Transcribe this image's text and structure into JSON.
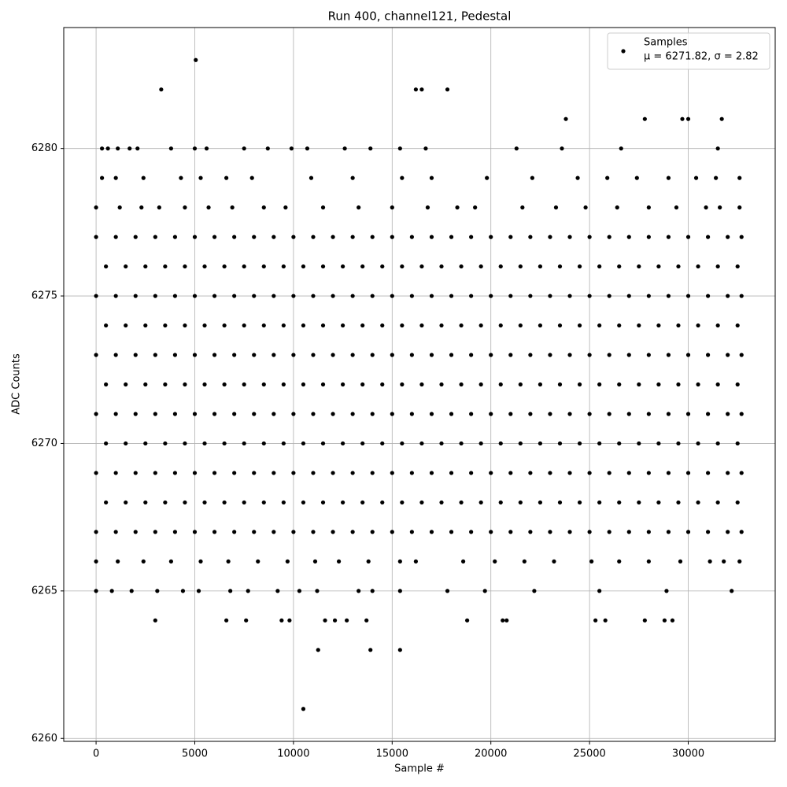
{
  "chart_data": {
    "type": "scatter",
    "title": "Run 400, channel121, Pedestal",
    "x_label": "Sample #",
    "y_label": "ADC Counts",
    "xlim": [
      -1638,
      34405
    ],
    "ylim": [
      6259.9,
      6284.1
    ],
    "xticks": [
      0,
      5000,
      10000,
      15000,
      20000,
      25000,
      30000
    ],
    "yticks": [
      6260,
      6265,
      6270,
      6275,
      6280
    ],
    "grid": true,
    "legend": "upper right",
    "series": [
      {
        "name": "Samples",
        "stats": "μ = 6271.82, σ = 2.82",
        "color": "#000000",
        "x": [
          3300,
          5050,
          16200,
          16500,
          17800,
          23800,
          27800,
          29700,
          30000,
          31700,
          11250,
          13900,
          15400,
          10500,
          3000,
          6600,
          7600,
          9400,
          9800,
          11600,
          12100,
          12700,
          13700,
          18800,
          20600,
          20800,
          25300,
          25800,
          27800,
          28800,
          29200,
          300,
          600,
          1100,
          1700,
          2100,
          3800,
          5000,
          5600,
          7500,
          8700,
          9900,
          10700,
          12600,
          13900,
          15400,
          16700,
          21300,
          23600,
          26600,
          31500,
          300,
          1000,
          2400,
          4300,
          5300,
          6600,
          7900,
          10900,
          13000,
          15500,
          17000,
          19800,
          22100,
          24400,
          25900,
          27400,
          29000,
          30400,
          31400,
          32600,
          0,
          1200,
          2300,
          3200,
          4500,
          5700,
          6900,
          8500,
          9600,
          11500,
          13300,
          15000,
          16800,
          18300,
          19200,
          21600,
          23300,
          24800,
          26400,
          28000,
          29400,
          30900,
          31600,
          32600,
          0,
          1100,
          2400,
          3800,
          5300,
          6700,
          8200,
          9700,
          11100,
          12300,
          13800,
          15400,
          16200,
          18600,
          20200,
          21700,
          23200,
          25100,
          26500,
          28000,
          29600,
          31100,
          31800,
          32600,
          0,
          800,
          1800,
          3100,
          4400,
          5200,
          6800,
          7700,
          9200,
          10300,
          11200,
          13300,
          14000,
          15400,
          17800,
          19700,
          22200,
          25500,
          28900,
          32200,
          0,
          1000,
          2000,
          3000,
          4000,
          5000,
          6000,
          7000,
          8000,
          9000,
          10000,
          11000,
          12000,
          13000,
          14000,
          15000,
          16000,
          17000,
          18000,
          19000,
          20000,
          21000,
          22000,
          23000,
          24000,
          25000,
          26000,
          27000,
          28000,
          29000,
          30000,
          31000,
          32000,
          32700,
          500,
          1500,
          2500,
          3500,
          4500,
          5500,
          6500,
          7500,
          8500,
          9500,
          10500,
          11500,
          12500,
          13500,
          14500,
          15500,
          16500,
          17500,
          18500,
          19500,
          20500,
          21500,
          22500,
          23500,
          24500,
          25500,
          26500,
          27500,
          28500,
          29500,
          30500,
          31500,
          32500,
          0,
          1000,
          2000,
          3000,
          4000,
          5000,
          6000,
          7000,
          8000,
          9000,
          10000,
          11000,
          12000,
          13000,
          14000,
          15000,
          16000,
          17000,
          18000,
          19000,
          20000,
          21000,
          22000,
          23000,
          24000,
          25000,
          26000,
          27000,
          28000,
          29000,
          30000,
          31000,
          32000,
          32700,
          500,
          1500,
          2500,
          3500,
          4500,
          5500,
          6500,
          7500,
          8500,
          9500,
          10500,
          11500,
          12500,
          13500,
          14500,
          15500,
          16500,
          17500,
          18500,
          19500,
          20500,
          21500,
          22500,
          23500,
          24500,
          25500,
          26500,
          27500,
          28500,
          29500,
          30500,
          31500,
          32500,
          0,
          1000,
          2000,
          3000,
          4000,
          5000,
          6000,
          7000,
          8000,
          9000,
          10000,
          11000,
          12000,
          13000,
          14000,
          15000,
          16000,
          17000,
          18000,
          19000,
          20000,
          21000,
          22000,
          23000,
          24000,
          25000,
          26000,
          27000,
          28000,
          29000,
          30000,
          31000,
          32000,
          32700,
          500,
          1500,
          2500,
          3500,
          4500,
          5500,
          6500,
          7500,
          8500,
          9500,
          10500,
          11500,
          12500,
          13500,
          14500,
          15500,
          16500,
          17500,
          18500,
          19500,
          20500,
          21500,
          22500,
          23500,
          24500,
          25500,
          26500,
          27500,
          28500,
          29500,
          30500,
          31500,
          32500,
          0,
          1000,
          2000,
          3000,
          4000,
          5000,
          6000,
          7000,
          8000,
          9000,
          10000,
          11000,
          12000,
          13000,
          14000,
          15000,
          16000,
          17000,
          18000,
          19000,
          20000,
          21000,
          22000,
          23000,
          24000,
          25000,
          26000,
          27000,
          28000,
          29000,
          30000,
          31000,
          32000,
          32700,
          500,
          1500,
          2500,
          3500,
          4500,
          5500,
          6500,
          7500,
          8500,
          9500,
          10500,
          11500,
          12500,
          13500,
          14500,
          15500,
          16500,
          17500,
          18500,
          19500,
          20500,
          21500,
          22500,
          23500,
          24500,
          25500,
          26500,
          27500,
          28500,
          29500,
          30500,
          31500,
          32500,
          0,
          1000,
          2000,
          3000,
          4000,
          5000,
          6000,
          7000,
          8000,
          9000,
          10000,
          11000,
          12000,
          13000,
          14000,
          15000,
          16000,
          17000,
          18000,
          19000,
          20000,
          21000,
          22000,
          23000,
          24000,
          25000,
          26000,
          27000,
          28000,
          29000,
          30000,
          31000,
          32000,
          32700,
          500,
          1500,
          2500,
          3500,
          4500,
          5500,
          6500,
          7500,
          8500,
          9500,
          10500,
          11500,
          12500,
          13500,
          14500,
          15500,
          16500,
          17500,
          18500,
          19500,
          20500,
          21500,
          22500,
          23500,
          24500,
          25500,
          26500,
          27500,
          28500,
          29500,
          30500,
          31500,
          32500,
          0,
          1000,
          2000,
          3000,
          4000,
          5000,
          6000,
          7000,
          8000,
          9000,
          10000,
          11000,
          12000,
          13000,
          14000,
          15000,
          16000,
          17000,
          18000,
          19000,
          20000,
          21000,
          22000,
          23000,
          24000,
          25000,
          26000,
          27000,
          28000,
          29000,
          30000,
          31000,
          32000,
          32700
        ],
        "values": [
          6282,
          6283,
          6282,
          6282,
          6282,
          6281,
          6281,
          6281,
          6281,
          6281,
          6263,
          6263,
          6263,
          6261,
          6264,
          6264,
          6264,
          6264,
          6264,
          6264,
          6264,
          6264,
          6264,
          6264,
          6264,
          6264,
          6264,
          6264,
          6264,
          6264,
          6264,
          6280,
          6280,
          6280,
          6280,
          6280,
          6280,
          6280,
          6280,
          6280,
          6280,
          6280,
          6280,
          6280,
          6280,
          6280,
          6280,
          6280,
          6280,
          6280,
          6280,
          6279,
          6279,
          6279,
          6279,
          6279,
          6279,
          6279,
          6279,
          6279,
          6279,
          6279,
          6279,
          6279,
          6279,
          6279,
          6279,
          6279,
          6279,
          6279,
          6279,
          6278,
          6278,
          6278,
          6278,
          6278,
          6278,
          6278,
          6278,
          6278,
          6278,
          6278,
          6278,
          6278,
          6278,
          6278,
          6278,
          6278,
          6278,
          6278,
          6278,
          6278,
          6278,
          6278,
          6278,
          6266,
          6266,
          6266,
          6266,
          6266,
          6266,
          6266,
          6266,
          6266,
          6266,
          6266,
          6266,
          6266,
          6266,
          6266,
          6266,
          6266,
          6266,
          6266,
          6266,
          6266,
          6266,
          6266,
          6266,
          6265,
          6265,
          6265,
          6265,
          6265,
          6265,
          6265,
          6265,
          6265,
          6265,
          6265,
          6265,
          6265,
          6265,
          6265,
          6265,
          6265,
          6265,
          6265,
          6265,
          6267,
          6267,
          6267,
          6267,
          6267,
          6267,
          6267,
          6267,
          6267,
          6267,
          6267,
          6267,
          6267,
          6267,
          6267,
          6267,
          6267,
          6267,
          6267,
          6267,
          6267,
          6267,
          6267,
          6267,
          6267,
          6267,
          6267,
          6267,
          6267,
          6267,
          6267,
          6267,
          6267,
          6267,
          6268,
          6268,
          6268,
          6268,
          6268,
          6268,
          6268,
          6268,
          6268,
          6268,
          6268,
          6268,
          6268,
          6268,
          6268,
          6268,
          6268,
          6268,
          6268,
          6268,
          6268,
          6268,
          6268,
          6268,
          6268,
          6268,
          6268,
          6268,
          6268,
          6268,
          6268,
          6268,
          6268,
          6269,
          6269,
          6269,
          6269,
          6269,
          6269,
          6269,
          6269,
          6269,
          6269,
          6269,
          6269,
          6269,
          6269,
          6269,
          6269,
          6269,
          6269,
          6269,
          6269,
          6269,
          6269,
          6269,
          6269,
          6269,
          6269,
          6269,
          6269,
          6269,
          6269,
          6269,
          6269,
          6269,
          6269,
          6270,
          6270,
          6270,
          6270,
          6270,
          6270,
          6270,
          6270,
          6270,
          6270,
          6270,
          6270,
          6270,
          6270,
          6270,
          6270,
          6270,
          6270,
          6270,
          6270,
          6270,
          6270,
          6270,
          6270,
          6270,
          6270,
          6270,
          6270,
          6270,
          6270,
          6270,
          6270,
          6270,
          6271,
          6271,
          6271,
          6271,
          6271,
          6271,
          6271,
          6271,
          6271,
          6271,
          6271,
          6271,
          6271,
          6271,
          6271,
          6271,
          6271,
          6271,
          6271,
          6271,
          6271,
          6271,
          6271,
          6271,
          6271,
          6271,
          6271,
          6271,
          6271,
          6271,
          6271,
          6271,
          6271,
          6271,
          6272,
          6272,
          6272,
          6272,
          6272,
          6272,
          6272,
          6272,
          6272,
          6272,
          6272,
          6272,
          6272,
          6272,
          6272,
          6272,
          6272,
          6272,
          6272,
          6272,
          6272,
          6272,
          6272,
          6272,
          6272,
          6272,
          6272,
          6272,
          6272,
          6272,
          6272,
          6272,
          6272,
          6273,
          6273,
          6273,
          6273,
          6273,
          6273,
          6273,
          6273,
          6273,
          6273,
          6273,
          6273,
          6273,
          6273,
          6273,
          6273,
          6273,
          6273,
          6273,
          6273,
          6273,
          6273,
          6273,
          6273,
          6273,
          6273,
          6273,
          6273,
          6273,
          6273,
          6273,
          6273,
          6273,
          6273,
          6274,
          6274,
          6274,
          6274,
          6274,
          6274,
          6274,
          6274,
          6274,
          6274,
          6274,
          6274,
          6274,
          6274,
          6274,
          6274,
          6274,
          6274,
          6274,
          6274,
          6274,
          6274,
          6274,
          6274,
          6274,
          6274,
          6274,
          6274,
          6274,
          6274,
          6274,
          6274,
          6274,
          6275,
          6275,
          6275,
          6275,
          6275,
          6275,
          6275,
          6275,
          6275,
          6275,
          6275,
          6275,
          6275,
          6275,
          6275,
          6275,
          6275,
          6275,
          6275,
          6275,
          6275,
          6275,
          6275,
          6275,
          6275,
          6275,
          6275,
          6275,
          6275,
          6275,
          6275,
          6275,
          6275,
          6275,
          6276,
          6276,
          6276,
          6276,
          6276,
          6276,
          6276,
          6276,
          6276,
          6276,
          6276,
          6276,
          6276,
          6276,
          6276,
          6276,
          6276,
          6276,
          6276,
          6276,
          6276,
          6276,
          6276,
          6276,
          6276,
          6276,
          6276,
          6276,
          6276,
          6276,
          6276,
          6276,
          6276,
          6277,
          6277,
          6277,
          6277,
          6277,
          6277,
          6277,
          6277,
          6277,
          6277,
          6277,
          6277,
          6277,
          6277,
          6277,
          6277,
          6277,
          6277,
          6277,
          6277,
          6277,
          6277,
          6277,
          6277,
          6277,
          6277,
          6277,
          6277,
          6277,
          6277,
          6277,
          6277,
          6277,
          6277
        ]
      }
    ]
  }
}
